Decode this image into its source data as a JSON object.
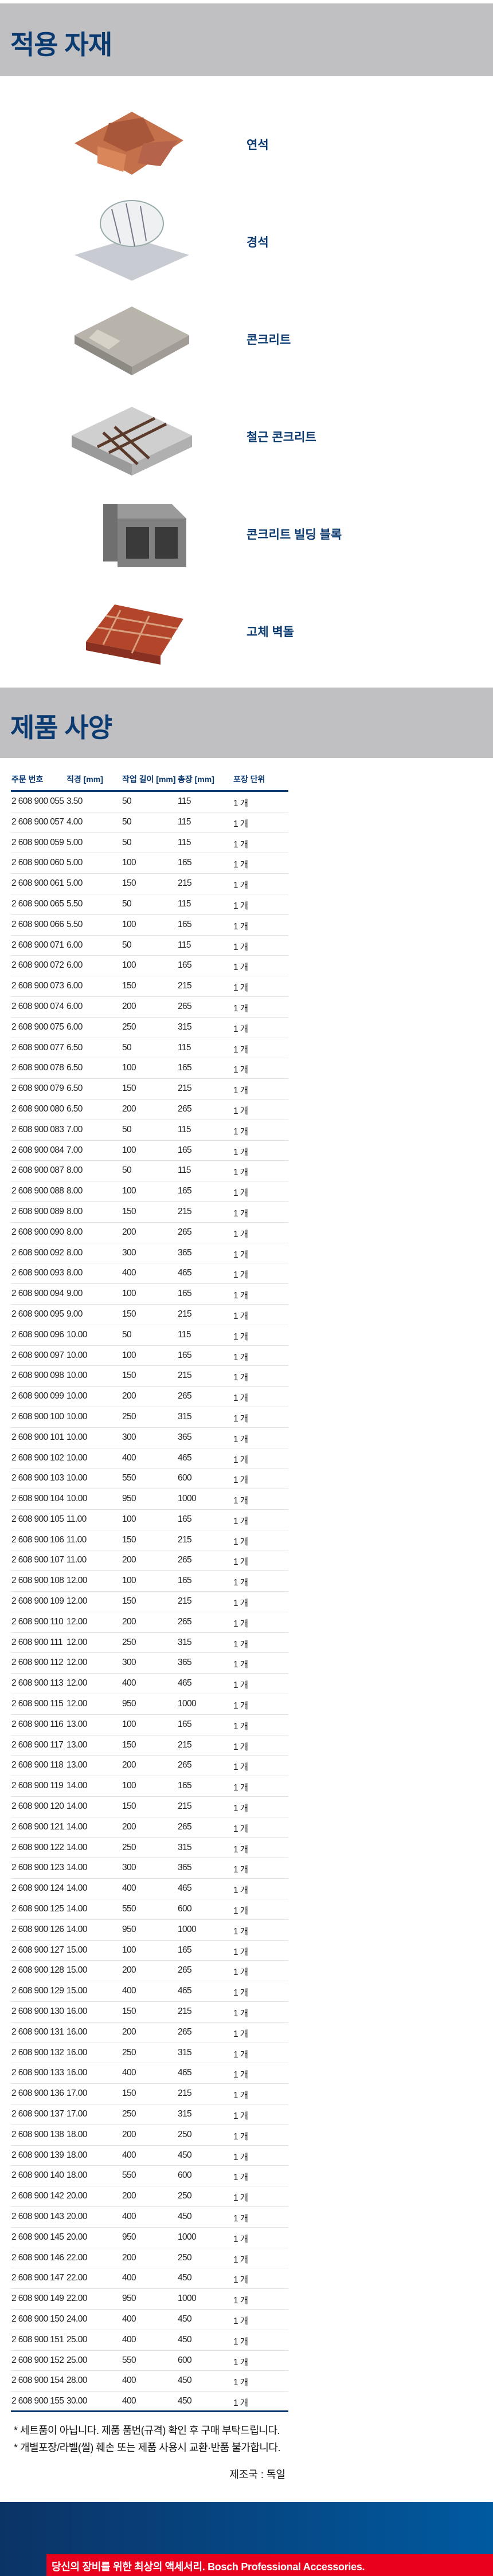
{
  "materials_section": {
    "title": "적용 자재",
    "items": [
      {
        "label": "연석",
        "icon": "paving-stone-icon"
      },
      {
        "label": "경석",
        "icon": "marble-stone-icon"
      },
      {
        "label": "콘크리트",
        "icon": "concrete-icon"
      },
      {
        "label": "철근 콘크리트",
        "icon": "reinforced-concrete-icon"
      },
      {
        "label": "콘크리트 빌딩 블록",
        "icon": "concrete-block-icon"
      },
      {
        "label": "고체 벽돌",
        "icon": "solid-brick-icon"
      }
    ]
  },
  "specs_section": {
    "title": "제품 사양",
    "columns": [
      "주문 번호",
      "직경 [mm]",
      "작업 길이 [mm]",
      "총장 [mm]",
      "포장 단위"
    ],
    "rows": [
      [
        "2 608 900 055",
        "3.50",
        "50",
        "115",
        "1 개"
      ],
      [
        "2 608 900 057",
        "4.00",
        "50",
        "115",
        "1 개"
      ],
      [
        "2 608 900 059",
        "5.00",
        "50",
        "115",
        "1 개"
      ],
      [
        "2 608 900 060",
        "5.00",
        "100",
        "165",
        "1 개"
      ],
      [
        "2 608 900 061",
        "5.00",
        "150",
        "215",
        "1 개"
      ],
      [
        "2 608 900 065",
        "5.50",
        "50",
        "115",
        "1 개"
      ],
      [
        "2 608 900 066",
        "5.50",
        "100",
        "165",
        "1 개"
      ],
      [
        "2 608 900 071",
        "6.00",
        "50",
        "115",
        "1 개"
      ],
      [
        "2 608 900 072",
        "6.00",
        "100",
        "165",
        "1 개"
      ],
      [
        "2 608 900 073",
        "6.00",
        "150",
        "215",
        "1 개"
      ],
      [
        "2 608 900 074",
        "6.00",
        "200",
        "265",
        "1 개"
      ],
      [
        "2 608 900 075",
        "6.00",
        "250",
        "315",
        "1 개"
      ],
      [
        "2 608 900 077",
        "6.50",
        "50",
        "115",
        "1 개"
      ],
      [
        "2 608 900 078",
        "6.50",
        "100",
        "165",
        "1 개"
      ],
      [
        "2 608 900 079",
        "6.50",
        "150",
        "215",
        "1 개"
      ],
      [
        "2 608 900 080",
        "6.50",
        "200",
        "265",
        "1 개"
      ],
      [
        "2 608 900 083",
        "7.00",
        "50",
        "115",
        "1 개"
      ],
      [
        "2 608 900 084",
        "7.00",
        "100",
        "165",
        "1 개"
      ],
      [
        "2 608 900 087",
        "8.00",
        "50",
        "115",
        "1 개"
      ],
      [
        "2 608 900 088",
        "8.00",
        "100",
        "165",
        "1 개"
      ],
      [
        "2 608 900 089",
        "8.00",
        "150",
        "215",
        "1 개"
      ],
      [
        "2 608 900 090",
        "8.00",
        "200",
        "265",
        "1 개"
      ],
      [
        "2 608 900 092",
        "8.00",
        "300",
        "365",
        "1 개"
      ],
      [
        "2 608 900 093",
        "8.00",
        "400",
        "465",
        "1 개"
      ],
      [
        "2 608 900 094",
        "9.00",
        "100",
        "165",
        "1 개"
      ],
      [
        "2 608 900 095",
        "9.00",
        "150",
        "215",
        "1 개"
      ],
      [
        "2 608 900 096",
        "10.00",
        "50",
        "115",
        "1 개"
      ],
      [
        "2 608 900 097",
        "10.00",
        "100",
        "165",
        "1 개"
      ],
      [
        "2 608 900 098",
        "10.00",
        "150",
        "215",
        "1 개"
      ],
      [
        "2 608 900 099",
        "10.00",
        "200",
        "265",
        "1 개"
      ],
      [
        "2 608 900 100",
        "10.00",
        "250",
        "315",
        "1 개"
      ],
      [
        "2 608 900 101",
        "10.00",
        "300",
        "365",
        "1 개"
      ],
      [
        "2 608 900 102",
        "10.00",
        "400",
        "465",
        "1 개"
      ],
      [
        "2 608 900 103",
        "10.00",
        "550",
        "600",
        "1 개"
      ],
      [
        "2 608 900 104",
        "10.00",
        "950",
        "1000",
        "1 개"
      ],
      [
        "2 608 900 105",
        "11.00",
        "100",
        "165",
        "1 개"
      ],
      [
        "2 608 900 106",
        "11.00",
        "150",
        "215",
        "1 개"
      ],
      [
        "2 608 900 107",
        "11.00",
        "200",
        "265",
        "1 개"
      ],
      [
        "2 608 900 108",
        "12.00",
        "100",
        "165",
        "1 개"
      ],
      [
        "2 608 900 109",
        "12.00",
        "150",
        "215",
        "1 개"
      ],
      [
        "2 608 900 110",
        "12.00",
        "200",
        "265",
        "1 개"
      ],
      [
        "2 608 900 111",
        "12.00",
        "250",
        "315",
        "1 개"
      ],
      [
        "2 608 900 112",
        "12.00",
        "300",
        "365",
        "1 개"
      ],
      [
        "2 608 900 113",
        "12.00",
        "400",
        "465",
        "1 개"
      ],
      [
        "2 608 900 115",
        "12.00",
        "950",
        "1000",
        "1 개"
      ],
      [
        "2 608 900 116",
        "13.00",
        "100",
        "165",
        "1 개"
      ],
      [
        "2 608 900 117",
        "13.00",
        "150",
        "215",
        "1 개"
      ],
      [
        "2 608 900 118",
        "13.00",
        "200",
        "265",
        "1 개"
      ],
      [
        "2 608 900 119",
        "14.00",
        "100",
        "165",
        "1 개"
      ],
      [
        "2 608 900 120",
        "14.00",
        "150",
        "215",
        "1 개"
      ],
      [
        "2 608 900 121",
        "14.00",
        "200",
        "265",
        "1 개"
      ],
      [
        "2 608 900 122",
        "14.00",
        "250",
        "315",
        "1 개"
      ],
      [
        "2 608 900 123",
        "14.00",
        "300",
        "365",
        "1 개"
      ],
      [
        "2 608 900 124",
        "14.00",
        "400",
        "465",
        "1 개"
      ],
      [
        "2 608 900 125",
        "14.00",
        "550",
        "600",
        "1 개"
      ],
      [
        "2 608 900 126",
        "14.00",
        "950",
        "1000",
        "1 개"
      ],
      [
        "2 608 900 127",
        "15.00",
        "100",
        "165",
        "1 개"
      ],
      [
        "2 608 900 128",
        "15.00",
        "200",
        "265",
        "1 개"
      ],
      [
        "2 608 900 129",
        "15.00",
        "400",
        "465",
        "1 개"
      ],
      [
        "2 608 900 130",
        "16.00",
        "150",
        "215",
        "1 개"
      ],
      [
        "2 608 900 131",
        "16.00",
        "200",
        "265",
        "1 개"
      ],
      [
        "2 608 900 132",
        "16.00",
        "250",
        "315",
        "1 개"
      ],
      [
        "2 608 900 133",
        "16.00",
        "400",
        "465",
        "1 개"
      ],
      [
        "2 608 900 136",
        "17.00",
        "150",
        "215",
        "1 개"
      ],
      [
        "2 608 900 137",
        "17.00",
        "250",
        "315",
        "1 개"
      ],
      [
        "2 608 900 138",
        "18.00",
        "200",
        "250",
        "1 개"
      ],
      [
        "2 608 900 139",
        "18.00",
        "400",
        "450",
        "1 개"
      ],
      [
        "2 608 900 140",
        "18.00",
        "550",
        "600",
        "1 개"
      ],
      [
        "2 608 900 142",
        "20.00",
        "200",
        "250",
        "1 개"
      ],
      [
        "2 608 900 143",
        "20.00",
        "400",
        "450",
        "1 개"
      ],
      [
        "2 608 900 145",
        "20.00",
        "950",
        "1000",
        "1 개"
      ],
      [
        "2 608 900 146",
        "22.00",
        "200",
        "250",
        "1 개"
      ],
      [
        "2 608 900 147",
        "22.00",
        "400",
        "450",
        "1 개"
      ],
      [
        "2 608 900 149",
        "22.00",
        "950",
        "1000",
        "1 개"
      ],
      [
        "2 608 900 150",
        "24.00",
        "400",
        "450",
        "1 개"
      ],
      [
        "2 608 900 151",
        "25.00",
        "400",
        "450",
        "1 개"
      ],
      [
        "2 608 900 152",
        "25.00",
        "550",
        "600",
        "1 개"
      ],
      [
        "2 608 900 154",
        "28.00",
        "400",
        "450",
        "1 개"
      ],
      [
        "2 608 900 155",
        "30.00",
        "400",
        "450",
        "1 개"
      ]
    ]
  },
  "notes": [
    "* 세트품이 아닙니다. 제품 품번(규격) 확인 후 구매 부탁드립니다.",
    "* 개별포장/라벨(씰) 훼손 또는 제품 사용시 교환·반품 불가합니다."
  ],
  "origin": "제조국 : 독일",
  "footer": {
    "banner": "당신의 장비를 위한 최상의 액세서리. Bosch Professional Accessories."
  },
  "colors": {
    "accent": "#0a3a70",
    "banner": "#e8001c",
    "band": "#c0c0c2"
  }
}
